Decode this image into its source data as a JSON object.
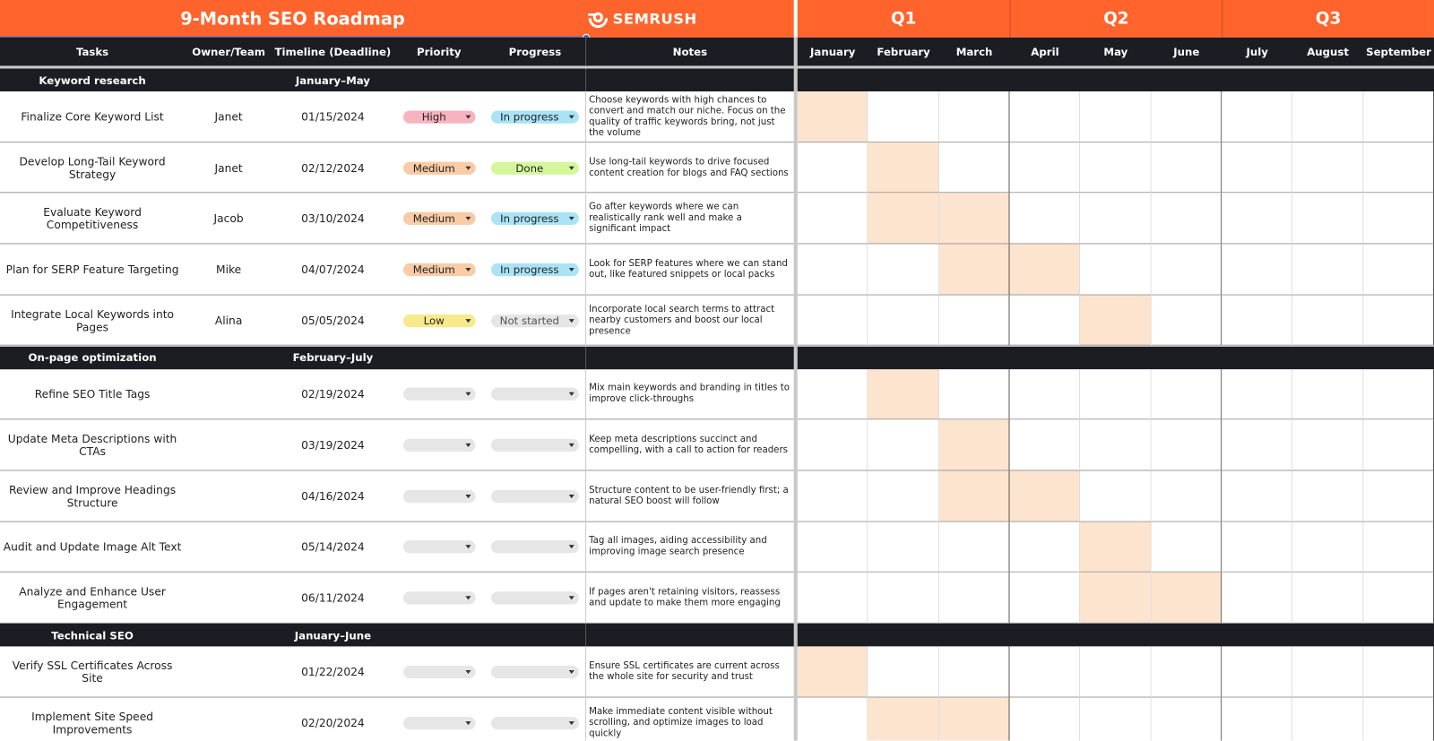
{
  "header": {
    "title": "9-Month SEO Roadmap",
    "brand": "SEMRUSH",
    "quarters": [
      "Q1",
      "Q2",
      "Q3"
    ]
  },
  "columns": [
    "Tasks",
    "Owner/Team",
    "Timeline (Deadline)",
    "Priority",
    "Progress",
    "Notes"
  ],
  "months": [
    "January",
    "February",
    "March",
    "April",
    "May",
    "June",
    "July",
    "August",
    "September"
  ],
  "pill_colors": {
    "High": "#f7b3bf",
    "Medium": "#f9cba6",
    "Low": "#f8ea8c",
    "In progress": "#a9e3f5",
    "Done": "#d5f79c",
    "Not started": "#e6e6e6"
  },
  "sections": [
    {
      "name": "Keyword research",
      "timeline": "January–May",
      "tasks": [
        {
          "task": "Finalize Core Keyword List",
          "owner": "Janet",
          "deadline": "01/15/2024",
          "priority": "High",
          "progress": "In progress",
          "notes": "Choose keywords with high chances to convert and match our niche. Focus on the quality of traffic keywords bring, not just the volume",
          "schedule": [
            true,
            false,
            false,
            false,
            false,
            false,
            false,
            false,
            false
          ]
        },
        {
          "task": "Develop Long-Tail Keyword Strategy",
          "owner": "Janet",
          "deadline": "02/12/2024",
          "priority": "Medium",
          "progress": "Done",
          "notes": "Use long-tail keywords to drive focused content creation for blogs and FAQ sections",
          "schedule": [
            false,
            true,
            false,
            false,
            false,
            false,
            false,
            false,
            false
          ]
        },
        {
          "task": "Evaluate Keyword Competitiveness",
          "owner": "Jacob",
          "deadline": "03/10/2024",
          "priority": "Medium",
          "progress": "In progress",
          "notes": "Go after keywords where we can realistically rank well and make a significant impact",
          "schedule": [
            false,
            true,
            true,
            false,
            false,
            false,
            false,
            false,
            false
          ]
        },
        {
          "task": "Plan for SERP Feature Targeting",
          "owner": "Mike",
          "deadline": "04/07/2024",
          "priority": "Medium",
          "progress": "In progress",
          "notes": "Look for SERP features where we can stand out, like featured snippets or local packs",
          "schedule": [
            false,
            false,
            true,
            true,
            false,
            false,
            false,
            false,
            false
          ]
        },
        {
          "task": "Integrate Local Keywords into Pages",
          "owner": "Alina",
          "deadline": "05/05/2024",
          "priority": "Low",
          "progress": "Not started",
          "notes": "Incorporate local search terms to attract nearby customers and boost our local presence",
          "schedule": [
            false,
            false,
            false,
            false,
            true,
            false,
            false,
            false,
            false
          ]
        }
      ]
    },
    {
      "name": "On-page optimization",
      "timeline": "February–July",
      "tasks": [
        {
          "task": "Refine SEO Title Tags",
          "owner": null,
          "deadline": "02/19/2024",
          "priority": null,
          "progress": null,
          "notes": "Mix main keywords and branding in titles to improve click-throughs",
          "schedule": [
            false,
            true,
            false,
            false,
            false,
            false,
            false,
            false,
            false
          ]
        },
        {
          "task": "Update Meta Descriptions with CTAs",
          "owner": null,
          "deadline": "03/19/2024",
          "priority": null,
          "progress": null,
          "notes": "Keep meta descriptions succinct and compelling, with a call to action for readers",
          "schedule": [
            false,
            false,
            true,
            false,
            false,
            false,
            false,
            false,
            false
          ]
        },
        {
          "task": "Review and Improve Headings Structure",
          "owner": null,
          "deadline": "04/16/2024",
          "priority": null,
          "progress": null,
          "notes": "Structure content to be user-friendly first; a natural SEO boost will follow",
          "schedule": [
            false,
            false,
            true,
            true,
            false,
            false,
            false,
            false,
            false
          ]
        },
        {
          "task": "Audit and Update Image Alt Text",
          "owner": null,
          "deadline": "05/14/2024",
          "priority": null,
          "progress": null,
          "notes": "Tag all images, aiding accessibility and improving image search presence",
          "schedule": [
            false,
            false,
            false,
            false,
            true,
            false,
            false,
            false,
            false
          ]
        },
        {
          "task": "Analyze and Enhance User Engagement",
          "owner": null,
          "deadline": "06/11/2024",
          "priority": null,
          "progress": null,
          "notes": "If pages aren't retaining visitors, reassess and update to make them more engaging",
          "schedule": [
            false,
            false,
            false,
            false,
            true,
            true,
            false,
            false,
            false
          ]
        }
      ]
    },
    {
      "name": "Technical SEO",
      "timeline": "January–June",
      "tasks": [
        {
          "task": "Verify SSL Certificates Across Site",
          "owner": null,
          "deadline": "01/22/2024",
          "priority": null,
          "progress": null,
          "notes": "Ensure SSL certificates are current across the whole site for security and trust",
          "schedule": [
            true,
            false,
            false,
            false,
            false,
            false,
            false,
            false,
            false
          ]
        },
        {
          "task": "Implement Site Speed Improvements",
          "owner": null,
          "deadline": "02/20/2024",
          "priority": null,
          "progress": null,
          "notes": "Make immediate content visible without scrolling, and optimize images to load quickly",
          "schedule": [
            false,
            true,
            true,
            false,
            false,
            false,
            false,
            false,
            false
          ]
        }
      ]
    }
  ]
}
